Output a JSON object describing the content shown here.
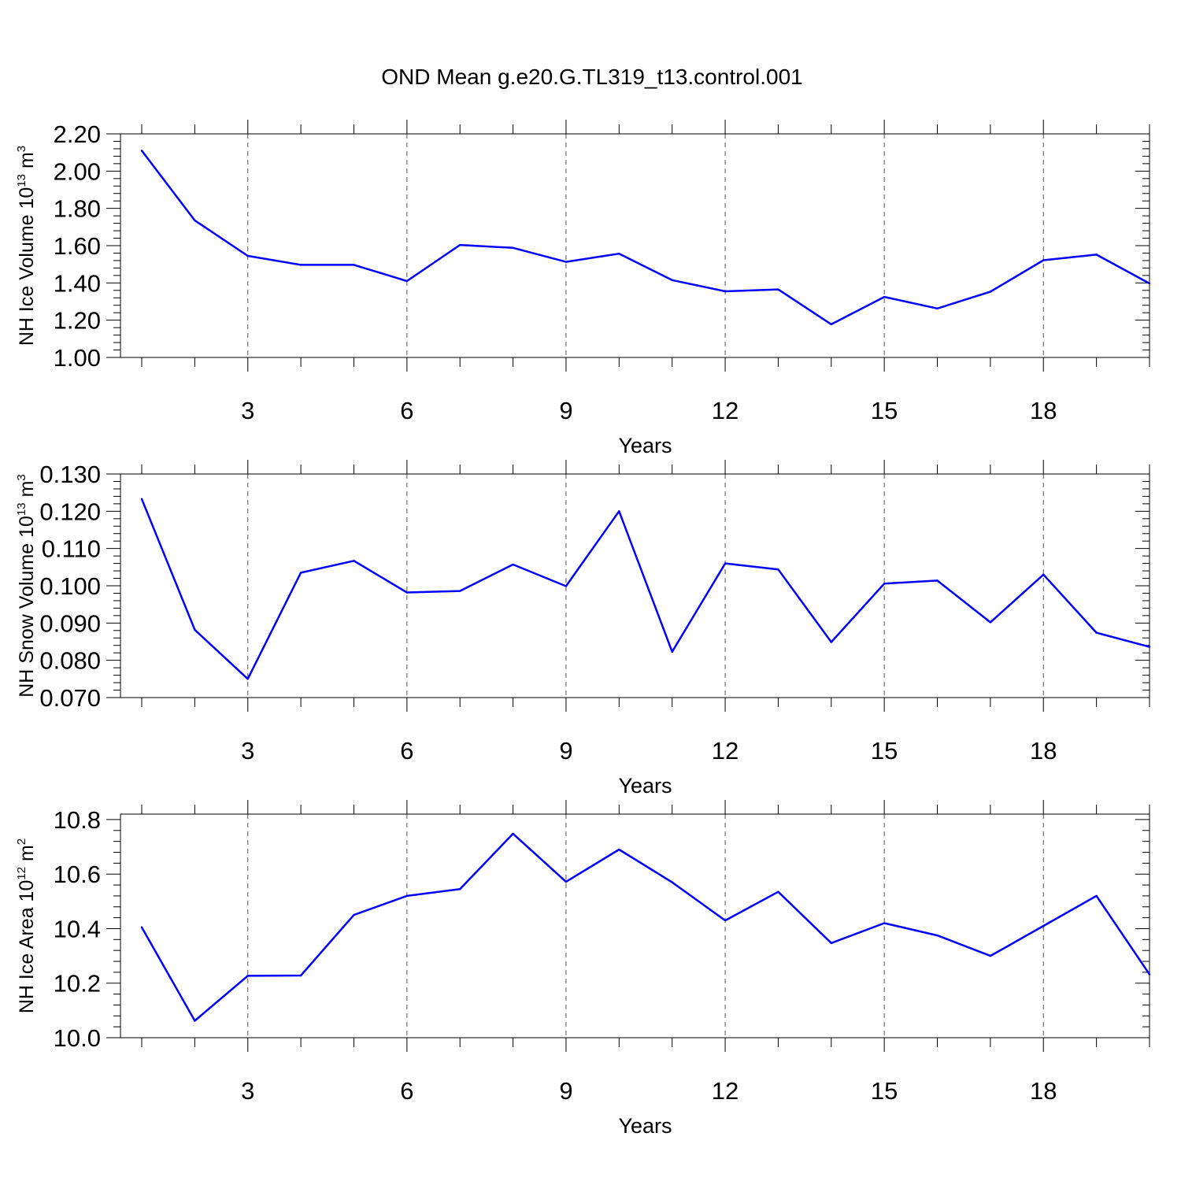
{
  "title": "OND Mean g.e20.G.TL319_t13.control.001",
  "colors": {
    "line": "#0000ff",
    "axis": "#000000",
    "grid": "#555555"
  },
  "chart_data": [
    {
      "type": "line",
      "xlabel": "Years",
      "ylabel": {
        "prefix": "NH Ice Volume 10",
        "exponent": "13",
        "suffix": " m",
        "unit_exponent": "3"
      },
      "xlim": [
        1,
        20
      ],
      "xticks": [
        3,
        6,
        9,
        12,
        15,
        18
      ],
      "xtick_labels": [
        "3",
        "6",
        "9",
        "12",
        "15",
        "18"
      ],
      "ylim": [
        1.0,
        2.2
      ],
      "yticks": [
        1.0,
        1.2,
        1.4,
        1.6,
        1.8,
        2.0,
        2.2
      ],
      "ytick_labels": [
        "1.00",
        "1.20",
        "1.40",
        "1.60",
        "1.80",
        "2.00",
        "2.20"
      ],
      "x": [
        1,
        2,
        3,
        4,
        5,
        6,
        7,
        8,
        9,
        10,
        11,
        12,
        13,
        14,
        15,
        16,
        17,
        18,
        19,
        20
      ],
      "series": [
        {
          "name": "NH Ice Volume",
          "values": [
            2.11,
            1.735,
            1.545,
            1.497,
            1.497,
            1.41,
            1.604,
            1.588,
            1.513,
            1.557,
            1.415,
            1.355,
            1.365,
            1.178,
            1.325,
            1.263,
            1.353,
            1.522,
            1.552,
            1.397
          ]
        }
      ]
    },
    {
      "type": "line",
      "xlabel": "Years",
      "ylabel": {
        "prefix": "NH Snow Volume 10",
        "exponent": "13",
        "suffix": " m",
        "unit_exponent": "3"
      },
      "xlim": [
        1,
        20
      ],
      "xticks": [
        3,
        6,
        9,
        12,
        15,
        18
      ],
      "xtick_labels": [
        "3",
        "6",
        "9",
        "12",
        "15",
        "18"
      ],
      "ylim": [
        0.07,
        0.13
      ],
      "yticks": [
        0.07,
        0.08,
        0.09,
        0.1,
        0.11,
        0.12,
        0.13
      ],
      "ytick_labels": [
        "0.070",
        "0.080",
        "0.090",
        "0.100",
        "0.110",
        "0.120",
        "0.130"
      ],
      "x": [
        1,
        2,
        3,
        4,
        5,
        6,
        7,
        8,
        9,
        10,
        11,
        12,
        13,
        14,
        15,
        16,
        17,
        18,
        19,
        20
      ],
      "series": [
        {
          "name": "NH Snow Volume",
          "values": [
            0.1233,
            0.0882,
            0.075,
            0.1035,
            0.1067,
            0.0982,
            0.0986,
            0.1057,
            0.0999,
            0.12,
            0.0823,
            0.106,
            0.1044,
            0.0849,
            0.1006,
            0.1014,
            0.0902,
            0.103,
            0.0874,
            0.0836
          ]
        }
      ]
    },
    {
      "type": "line",
      "xlabel": "Years",
      "ylabel": {
        "prefix": "NH Ice Area 10",
        "exponent": "12",
        "suffix": " m",
        "unit_exponent": "2"
      },
      "xlim": [
        1,
        20
      ],
      "xticks": [
        3,
        6,
        9,
        12,
        15,
        18
      ],
      "xtick_labels": [
        "3",
        "6",
        "9",
        "12",
        "15",
        "18"
      ],
      "ylim": [
        10.0,
        10.82
      ],
      "yticks": [
        10.0,
        10.2,
        10.4,
        10.6,
        10.8
      ],
      "ytick_labels": [
        "10.0",
        "10.2",
        "10.4",
        "10.6",
        "10.8"
      ],
      "x": [
        1,
        2,
        3,
        4,
        5,
        6,
        7,
        8,
        9,
        10,
        11,
        12,
        13,
        14,
        15,
        16,
        17,
        18,
        19,
        20
      ],
      "series": [
        {
          "name": "NH Ice Area",
          "values": [
            10.405,
            10.062,
            10.227,
            10.228,
            10.45,
            10.52,
            10.545,
            10.748,
            10.572,
            10.69,
            10.57,
            10.43,
            10.535,
            10.347,
            10.42,
            10.375,
            10.3,
            10.41,
            10.52,
            10.232
          ]
        }
      ]
    }
  ]
}
